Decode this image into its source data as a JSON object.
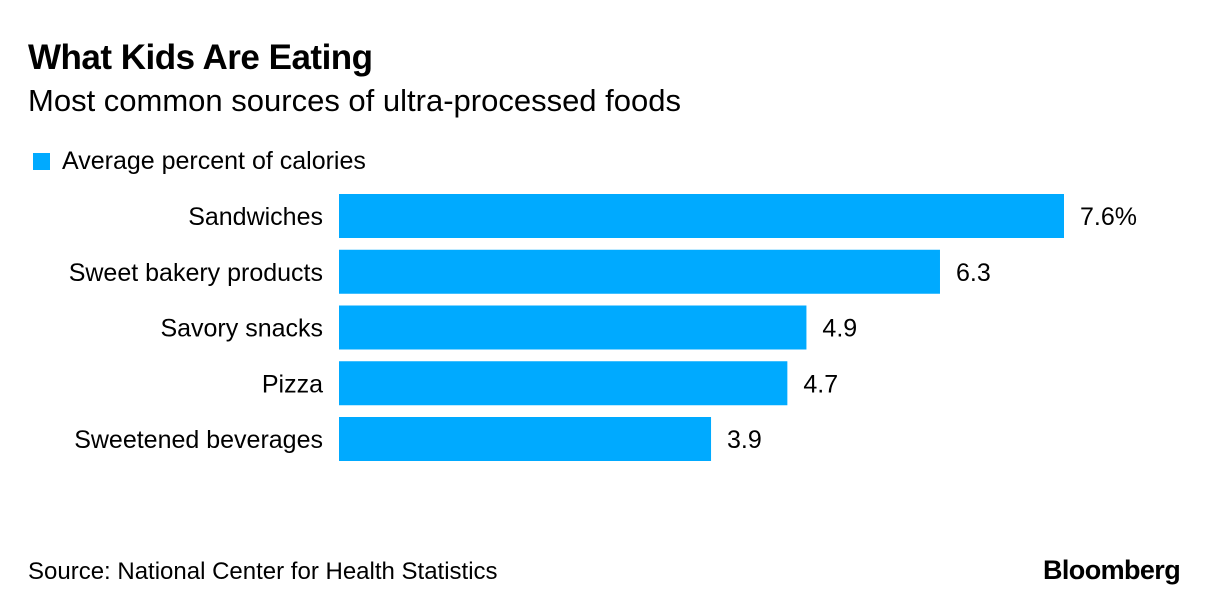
{
  "header": {
    "title": "What Kids Are Eating",
    "subtitle": "Most common sources of ultra-processed foods"
  },
  "legend": {
    "label": "Average percent of calories",
    "color": "#00AAFF"
  },
  "footer": {
    "source": "Source: National Center for Health Statistics",
    "brand": "Bloomberg"
  },
  "chart_data": {
    "type": "bar",
    "orientation": "horizontal",
    "title": "What Kids Are Eating",
    "subtitle": "Most common sources of ultra-processed foods",
    "categories": [
      "Sandwiches",
      "Sweet bakery products",
      "Savory snacks",
      "Pizza",
      "Sweetened beverages"
    ],
    "series": [
      {
        "name": "Average percent of calories",
        "values": [
          7.6,
          6.3,
          4.9,
          4.7,
          3.9
        ],
        "color": "#00AAFF"
      }
    ],
    "value_labels": [
      "7.6%",
      "6.3",
      "4.9",
      "4.7",
      "3.9"
    ],
    "xlim": [
      0,
      7.6
    ],
    "grid": false,
    "legend": "top-left"
  }
}
